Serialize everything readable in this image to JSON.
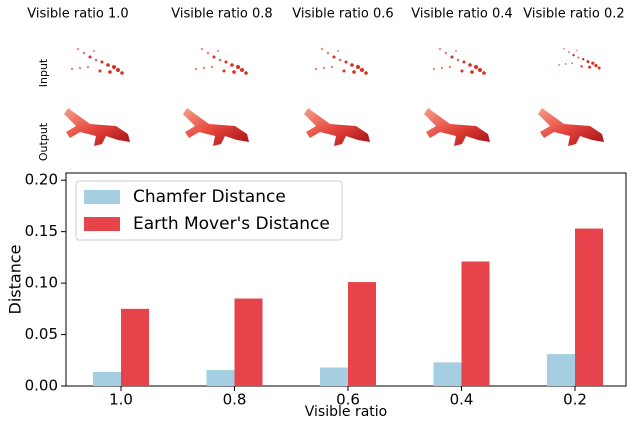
{
  "panels": {
    "column_titles": [
      "Visible ratio 1.0",
      "Visible ratio 0.8",
      "Visible ratio 0.6",
      "Visible ratio 0.4",
      "Visible ratio 0.2"
    ],
    "row_labels": [
      "Input",
      "Output"
    ]
  },
  "chart_data": {
    "type": "bar",
    "categories": [
      "1.0",
      "0.8",
      "0.6",
      "0.4",
      "0.2"
    ],
    "series": [
      {
        "name": "Chamfer Distance",
        "color": "#a6cee3",
        "values": [
          0.0136,
          0.0155,
          0.018,
          0.023,
          0.031
        ]
      },
      {
        "name": "Earth Mover's Distance",
        "color": "#e7434b",
        "values": [
          0.075,
          0.085,
          0.101,
          0.121,
          0.153
        ]
      }
    ],
    "xlabel": "Visible ratio",
    "ylabel": "Distance",
    "ylim": [
      0,
      0.207
    ],
    "yticks": [
      {
        "value": 0,
        "label": "0.00"
      },
      0.05,
      {
        "value": 0.1,
        "label": "0.10"
      },
      0.15,
      {
        "value": 0.2,
        "label": "0.20"
      }
    ],
    "legend": "upper left",
    "grid": false
  }
}
